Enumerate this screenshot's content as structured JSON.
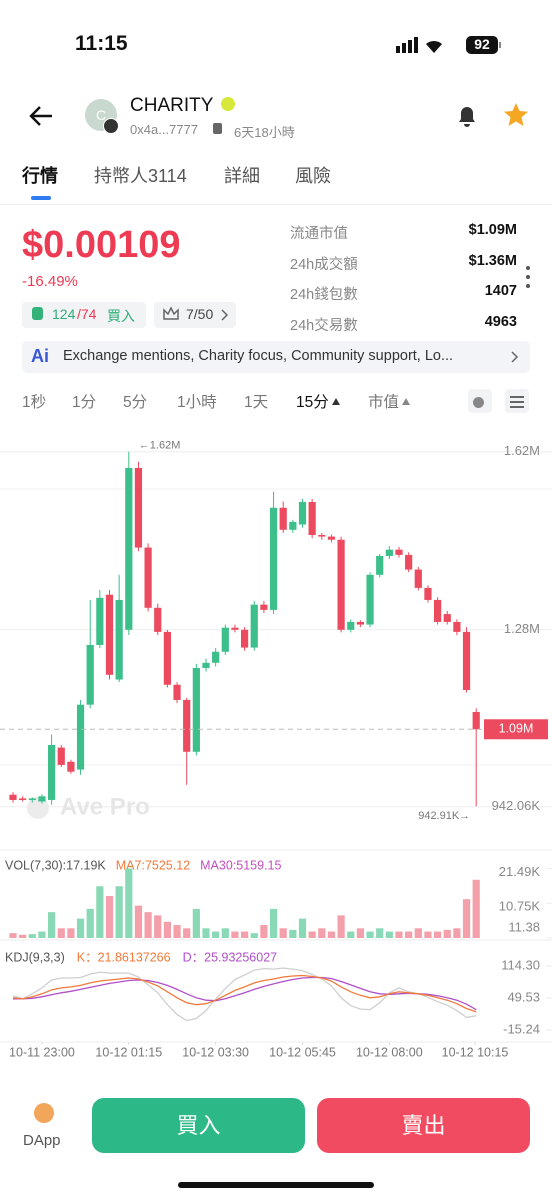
{
  "status_bar": {
    "time": "11:15",
    "battery": "92"
  },
  "header": {
    "avatar": "C",
    "name": "CHARITY",
    "address": "0x4a...7777",
    "age": "6天18小時"
  },
  "tabs": [
    "行情",
    "持幣人3114",
    "詳細",
    "風險"
  ],
  "price": {
    "value": "$0.00109",
    "change": "-16.49%",
    "buys": "124",
    "sells": "/74",
    "buy_label": "買入",
    "rank": "7/50"
  },
  "stats": [
    {
      "label": "流通市值",
      "value": "$1.09M"
    },
    {
      "label": "24h成交額",
      "value": "$1.36M"
    },
    {
      "label": "24h錢包數",
      "value": "1407"
    },
    {
      "label": "24h交易數",
      "value": "4963"
    }
  ],
  "ai_summary": "Exchange mentions, Charity focus, Community support, Lo...",
  "intervals": [
    "1秒",
    "1分",
    "5分",
    "1小時",
    "1天",
    "15分",
    "市值"
  ],
  "footer": {
    "dapp": "DApp",
    "buy": "買入",
    "sell": "賣出"
  },
  "chart_data": [
    {
      "type": "candlestick",
      "up_color": "#3cbf8a",
      "down_color": "#ec4a5e",
      "open": [
        965000,
        958000,
        955000,
        952000,
        955000,
        1055000,
        1028000,
        1013000,
        1137000,
        1251000,
        1347000,
        1185000,
        1280000,
        1589000,
        1437000,
        1322000,
        1276000,
        1175000,
        1146000,
        1047000,
        1207000,
        1217000,
        1238000,
        1284000,
        1280000,
        1246000,
        1328000,
        1318000,
        1513000,
        1471000,
        1481000,
        1524000,
        1461000,
        1458000,
        1452000,
        1280000,
        1295000,
        1290000,
        1385000,
        1421000,
        1433000,
        1423000,
        1395000,
        1360000,
        1337000,
        1310000,
        1295000,
        1276000,
        1123000
      ],
      "high": [
        970000,
        962000,
        960000,
        966000,
        1080000,
        1060000,
        1032000,
        1146000,
        1337000,
        1356000,
        1356000,
        1385000,
        1620000,
        1601000,
        1445000,
        1330000,
        1280000,
        1180000,
        1150000,
        1215000,
        1225000,
        1245000,
        1290000,
        1290000,
        1285000,
        1335000,
        1335000,
        1544000,
        1525000,
        1490000,
        1530000,
        1530000,
        1465000,
        1462000,
        1458000,
        1300000,
        1298000,
        1390000,
        1425000,
        1440000,
        1438000,
        1428000,
        1400000,
        1365000,
        1342000,
        1316000,
        1300000,
        1285000,
        1130000
      ],
      "low": [
        950000,
        952000,
        950000,
        948000,
        946000,
        1018000,
        1005000,
        1003000,
        1130000,
        1245000,
        1185000,
        1180000,
        1270000,
        1430000,
        1315000,
        1270000,
        1170000,
        1140000,
        984000,
        1040000,
        1200000,
        1210000,
        1232000,
        1275000,
        1240000,
        1240000,
        1312000,
        1310000,
        1465000,
        1465000,
        1475000,
        1455000,
        1452000,
        1447000,
        1275000,
        1275000,
        1285000,
        1285000,
        1380000,
        1415000,
        1418000,
        1390000,
        1355000,
        1332000,
        1290000,
        1290000,
        1270000,
        1160000,
        942910
      ],
      "close": [
        955000,
        955000,
        958000,
        962000,
        1060000,
        1022000,
        1009000,
        1137000,
        1251000,
        1341000,
        1194000,
        1337000,
        1589000,
        1437000,
        1322000,
        1276000,
        1175000,
        1146000,
        1047000,
        1207000,
        1217000,
        1238000,
        1284000,
        1280000,
        1246000,
        1328000,
        1318000,
        1513000,
        1471000,
        1486000,
        1524000,
        1461000,
        1458000,
        1452000,
        1280000,
        1295000,
        1290000,
        1385000,
        1421000,
        1433000,
        1423000,
        1395000,
        1360000,
        1337000,
        1295000,
        1295000,
        1276000,
        1165000,
        1090000
      ],
      "ylim": [
        869000,
        1652000
      ],
      "yticks": [
        {
          "value": 1620000,
          "label": "1.62M"
        },
        {
          "value": 1280000,
          "label": "1.28M"
        },
        {
          "value": 942060,
          "label": "942.06K"
        }
      ],
      "current_price": {
        "value": 1090000,
        "label": "1.09M"
      },
      "annotations": {
        "max": "←1.62M",
        "min": "942.91K→"
      },
      "watermark": "Ave Pro",
      "grid": true
    },
    {
      "type": "bar",
      "legend": [
        "VOL(7,30):17.19K",
        "MA7:7525.12",
        "MA30:5159.15"
      ],
      "legend_colors": [
        "#555555",
        "#f07a3a",
        "#c34fc0"
      ],
      "values": [
        1500,
        1000,
        1200,
        2000,
        8000,
        3000,
        3000,
        6000,
        9000,
        16000,
        13000,
        16000,
        21490,
        10000,
        8000,
        7000,
        5000,
        4000,
        3000,
        9000,
        3000,
        2000,
        3000,
        2000,
        2000,
        1500,
        4000,
        9000,
        3000,
        2500,
        6000,
        2000,
        3000,
        2000,
        7000,
        2000,
        3000,
        2000,
        3000,
        2000,
        2000,
        2000,
        3000,
        2000,
        2000,
        2500,
        3000,
        12000,
        18000
      ],
      "ylim": [
        0,
        23500
      ],
      "yticks": [
        {
          "value": 21490,
          "label": "21.49K"
        },
        {
          "value": 10750,
          "label": "10.75K"
        },
        11.38
      ]
    },
    {
      "type": "line",
      "legend": [
        "KDJ(9,3,3)"
      ],
      "series": [
        {
          "name": "K：21.86137266",
          "color": "#f07a3a",
          "values": [
            50,
            48,
            52,
            58,
            66,
            70,
            72,
            75,
            80,
            84,
            86,
            88,
            90,
            88,
            82,
            74,
            62,
            50,
            40,
            36,
            38,
            45,
            55,
            65,
            72,
            80,
            85,
            88,
            92,
            94,
            95,
            93,
            90,
            84,
            72,
            62,
            55,
            50,
            52,
            58,
            62,
            60,
            58,
            55,
            50,
            45,
            38,
            28,
            21.86137266
          ]
        },
        {
          "name": "D：25.93256027",
          "color": "#b04fc8",
          "values": [
            48,
            48,
            49,
            52,
            56,
            60,
            63,
            67,
            71,
            75,
            79,
            82,
            85,
            86,
            85,
            81,
            75,
            67,
            58,
            50,
            45,
            44,
            48,
            54,
            60,
            67,
            73,
            78,
            83,
            87,
            90,
            91,
            91,
            89,
            83,
            76,
            69,
            62,
            58,
            57,
            58,
            59,
            58,
            57,
            54,
            50,
            45,
            37,
            25.93256027
          ]
        },
        {
          "color": "#cfcfcf",
          "values": [
            54,
            48,
            58,
            70,
            86,
            90,
            90,
            91,
            98,
            102,
            100,
            100,
            100,
            92,
            76,
            60,
            36,
            16,
            4,
            8,
            24,
            47,
            69,
            87,
            96,
            106,
            109,
            108,
            110,
            108,
            105,
            97,
            88,
            74,
            50,
            34,
            27,
            26,
            40,
            60,
            70,
            62,
            58,
            51,
            42,
            35,
            24,
            10,
            13.72
          ]
        }
      ],
      "ylim": [
        -35.5,
        146.7
      ],
      "yticks": [
        {
          "value": 114.3,
          "label": "114.30"
        },
        49.53,
        -15.24
      ],
      "xticks": [
        {
          "value": 3,
          "label": "10-11 23:00"
        },
        {
          "value": 12,
          "label": "10-12 01:15"
        },
        {
          "value": 21,
          "label": "10-12 03:30"
        },
        {
          "value": 30,
          "label": "10-12 05:45"
        },
        {
          "value": 39,
          "label": "10-12 08:00"
        },
        {
          "value": 48,
          "label": "10-12 10:15"
        }
      ]
    }
  ]
}
